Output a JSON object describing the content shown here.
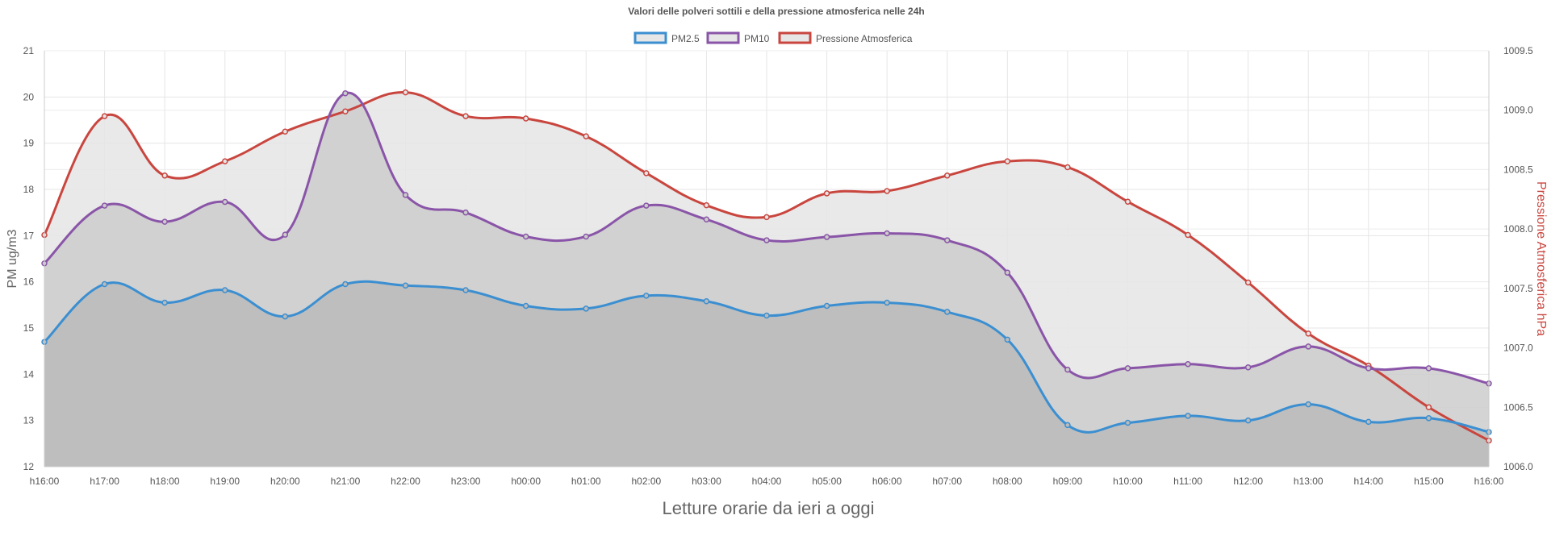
{
  "chart_data": {
    "type": "line",
    "title": "Valori delle polveri sottili e della pressione atmosferica nelle 24h",
    "xlabel": "Letture orarie da ieri a oggi",
    "ylabel_left": "PM ug/m3",
    "ylabel_right": "Pressione Atmosferica hPa",
    "ylim_left": [
      12,
      21
    ],
    "ylim_right": [
      1006.0,
      1009.5
    ],
    "yticks_left": [
      "12",
      "13",
      "14",
      "15",
      "16",
      "17",
      "18",
      "19",
      "20",
      "21"
    ],
    "yticks_right": [
      "1006.0",
      "1006.5",
      "1007.0",
      "1007.5",
      "1008.0",
      "1008.5",
      "1009.0",
      "1009.5"
    ],
    "categories": [
      "h16:00",
      "h17:00",
      "h18:00",
      "h19:00",
      "h20:00",
      "h21:00",
      "h22:00",
      "h23:00",
      "h00:00",
      "h01:00",
      "h02:00",
      "h03:00",
      "h04:00",
      "h05:00",
      "h06:00",
      "h07:00",
      "h08:00",
      "h09:00",
      "h10:00",
      "h11:00",
      "h12:00",
      "h13:00",
      "h14:00",
      "h15:00",
      "h16:00"
    ],
    "grid": true,
    "legend_position": "top",
    "series": [
      {
        "name": "PM2.5",
        "axis": "left",
        "color": "#3b8fd1",
        "fill": "#bbbbbb",
        "values": [
          14.7,
          15.95,
          15.55,
          15.82,
          15.25,
          15.95,
          15.92,
          15.82,
          15.48,
          15.42,
          15.7,
          15.58,
          15.27,
          15.48,
          15.55,
          15.35,
          14.75,
          12.9,
          12.95,
          13.1,
          13.0,
          13.35,
          12.97,
          13.05,
          12.75
        ]
      },
      {
        "name": "PM10",
        "axis": "left",
        "color": "#8a55a8",
        "fill": "#cccccc",
        "values": [
          16.4,
          17.65,
          17.3,
          17.73,
          17.02,
          20.08,
          17.88,
          17.5,
          16.98,
          16.98,
          17.65,
          17.35,
          16.9,
          16.97,
          17.05,
          16.9,
          16.2,
          14.1,
          14.13,
          14.22,
          14.15,
          14.6,
          14.13,
          14.13,
          13.8
        ]
      },
      {
        "name": "Pressione Atmosferica",
        "axis": "right",
        "color": "#c9463f",
        "fill": "#e5e5e5",
        "values": [
          1007.95,
          1008.95,
          1008.45,
          1008.57,
          1008.82,
          1008.99,
          1009.15,
          1008.95,
          1008.93,
          1008.78,
          1008.47,
          1008.2,
          1008.1,
          1008.3,
          1008.32,
          1008.45,
          1008.57,
          1008.52,
          1008.23,
          1007.95,
          1007.55,
          1007.12,
          1006.85,
          1006.5,
          1006.22
        ]
      }
    ]
  }
}
